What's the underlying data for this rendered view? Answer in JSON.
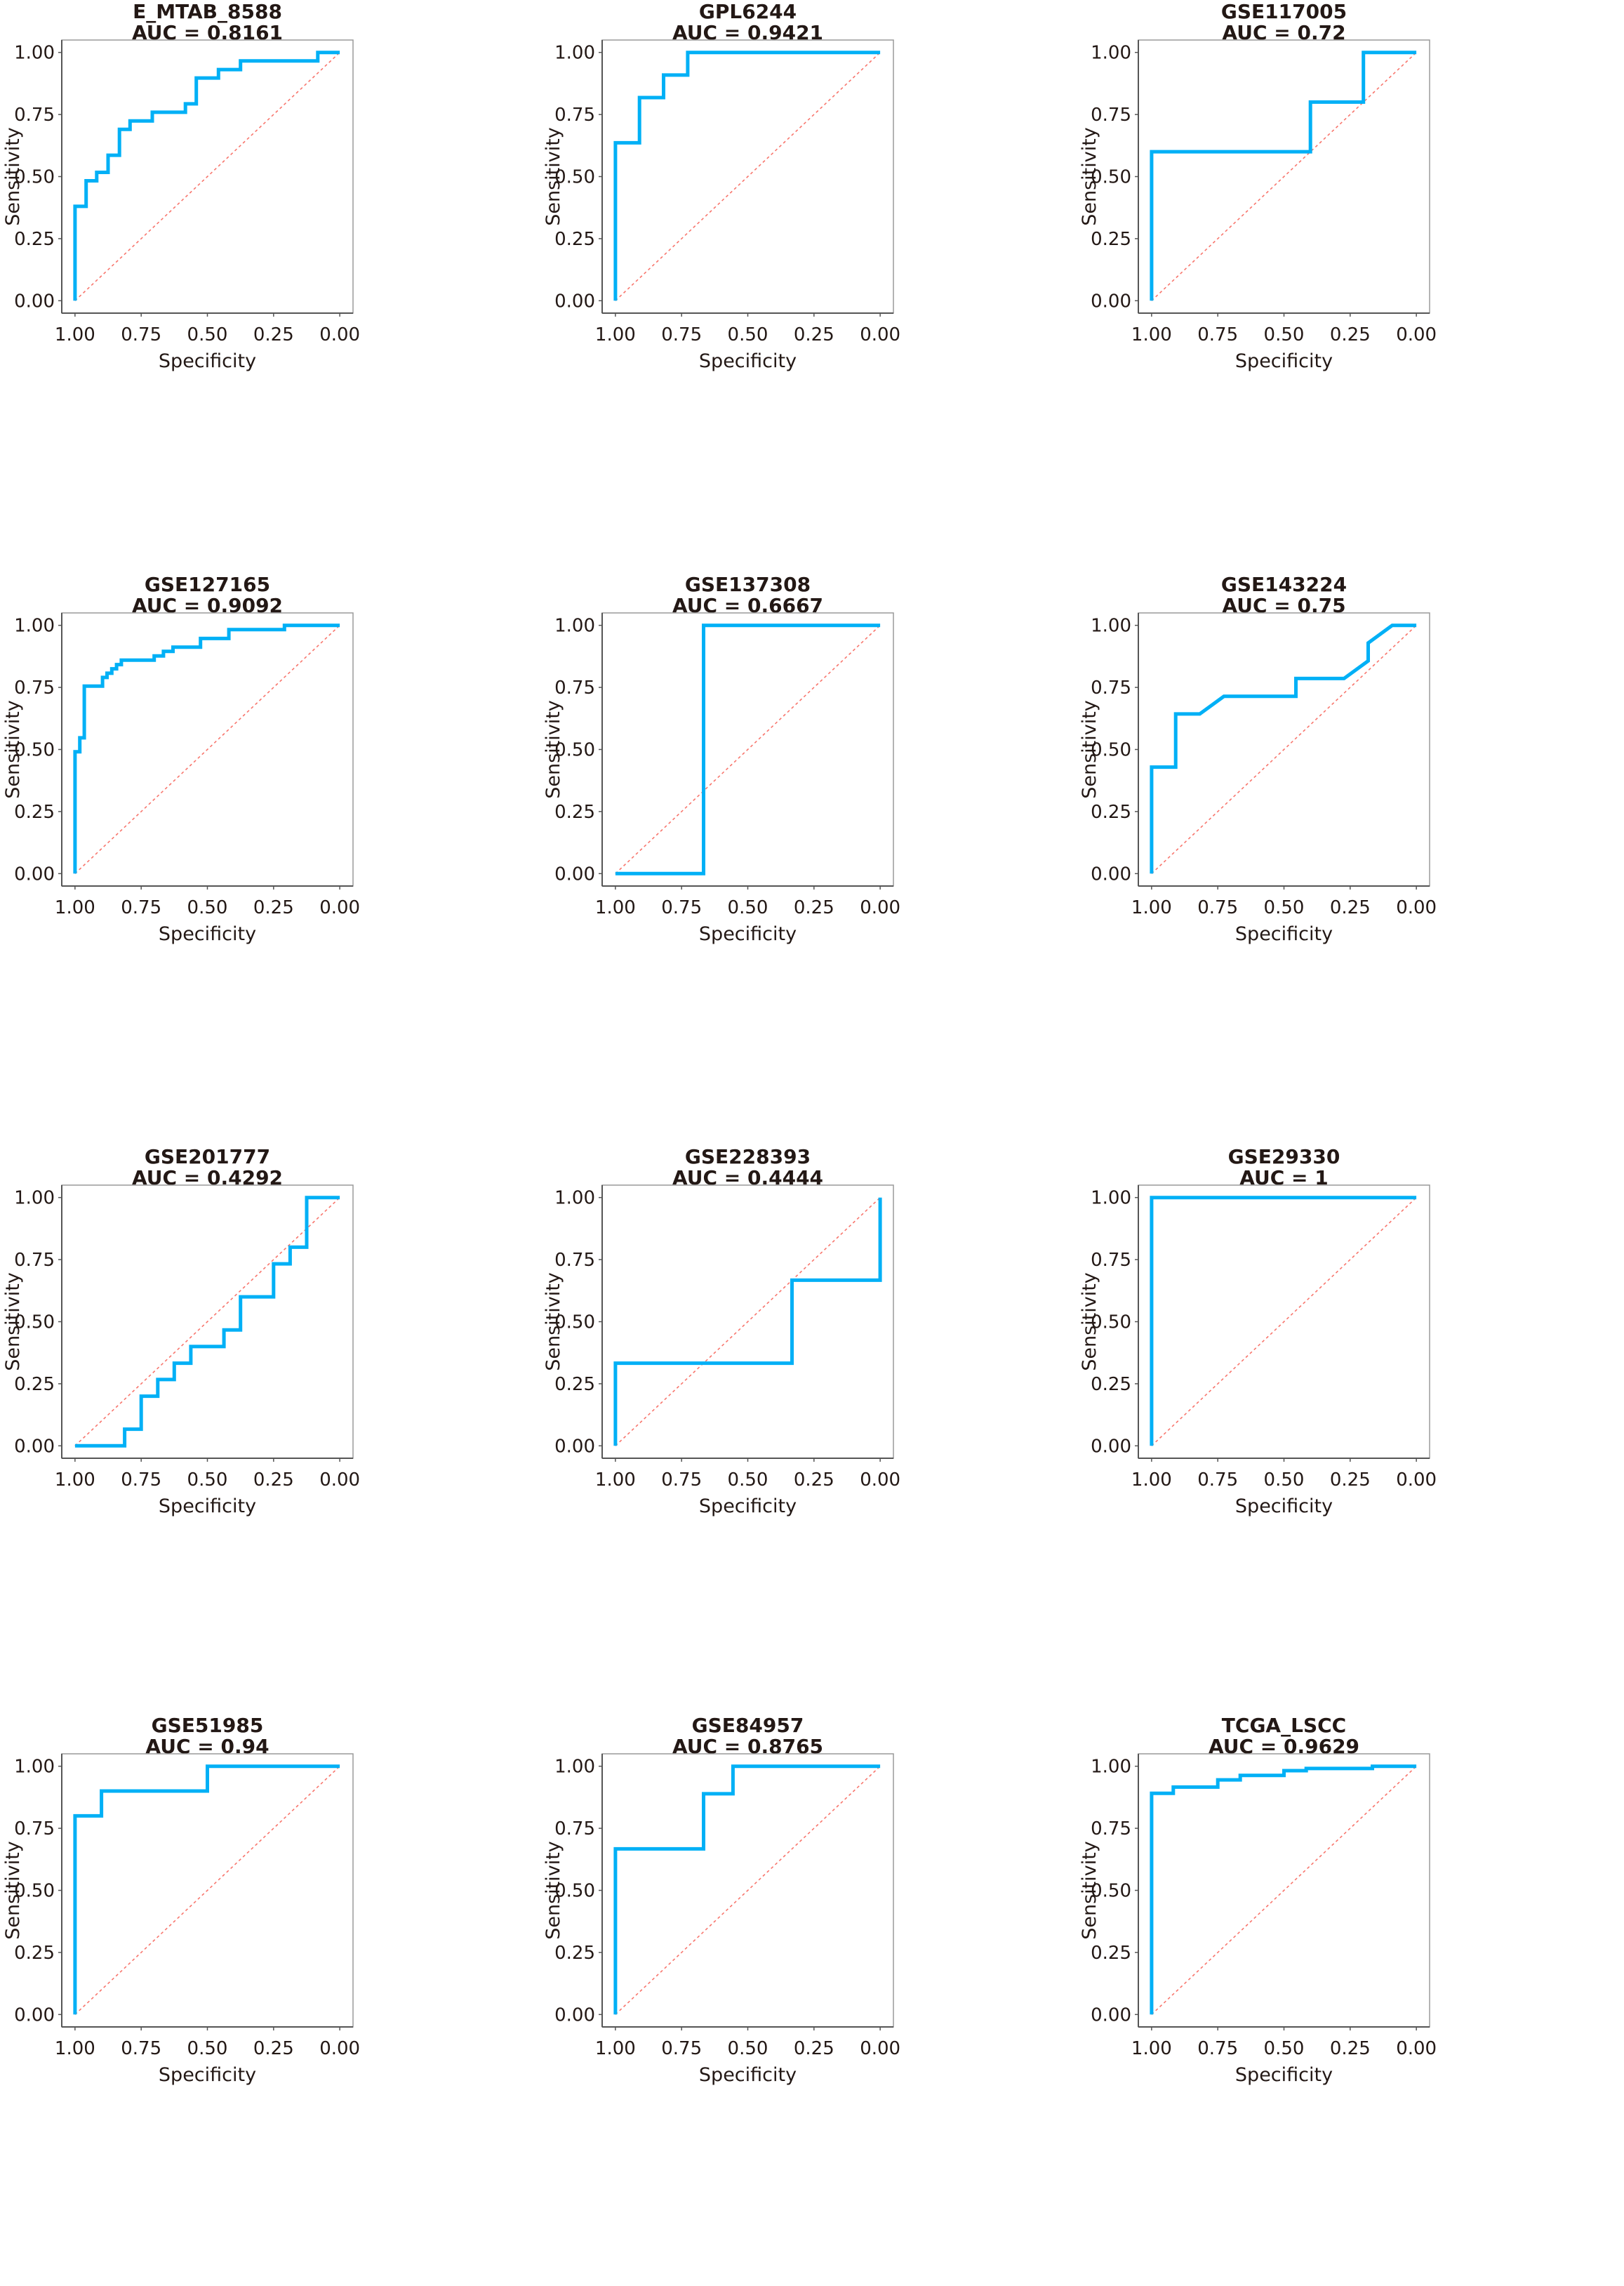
{
  "chart_data": [
    {
      "type": "line",
      "title": "E_MTAB_8588",
      "auc_label": "AUC = 0.8161",
      "xlabel": "Specificity",
      "ylabel": "Sensitivity",
      "xlim": [
        1,
        0
      ],
      "ylim": [
        0,
        1
      ],
      "x_reversed": true,
      "grid": false,
      "points": [
        [
          1,
          0
        ],
        [
          1,
          0.38
        ],
        [
          0.958,
          0.38
        ],
        [
          0.958,
          0.483
        ],
        [
          0.918,
          0.483
        ],
        [
          0.918,
          0.517
        ],
        [
          0.875,
          0.517
        ],
        [
          0.875,
          0.586
        ],
        [
          0.832,
          0.586
        ],
        [
          0.832,
          0.69
        ],
        [
          0.792,
          0.69
        ],
        [
          0.792,
          0.724
        ],
        [
          0.708,
          0.724
        ],
        [
          0.708,
          0.759
        ],
        [
          0.583,
          0.759
        ],
        [
          0.583,
          0.793
        ],
        [
          0.542,
          0.793
        ],
        [
          0.542,
          0.897
        ],
        [
          0.458,
          0.897
        ],
        [
          0.458,
          0.931
        ],
        [
          0.375,
          0.931
        ],
        [
          0.375,
          0.966
        ],
        [
          0.083,
          0.966
        ],
        [
          0.083,
          1
        ],
        [
          0,
          1
        ]
      ]
    },
    {
      "type": "line",
      "title": "GPL6244",
      "auc_label": "AUC = 0.9421",
      "xlabel": "Specificity",
      "ylabel": "Sensitivity",
      "xlim": [
        1,
        0
      ],
      "ylim": [
        0,
        1
      ],
      "x_reversed": true,
      "grid": false,
      "points": [
        [
          1,
          0
        ],
        [
          1,
          0.636
        ],
        [
          0.909,
          0.636
        ],
        [
          0.909,
          0.818
        ],
        [
          0.818,
          0.818
        ],
        [
          0.818,
          0.909
        ],
        [
          0.727,
          0.909
        ],
        [
          0.727,
          1
        ],
        [
          0,
          1
        ]
      ]
    },
    {
      "type": "line",
      "title": "GSE117005",
      "auc_label": "AUC = 0.72",
      "xlabel": "Specificity",
      "ylabel": "Sensitivity",
      "xlim": [
        1,
        0
      ],
      "ylim": [
        0,
        1
      ],
      "x_reversed": true,
      "grid": false,
      "points": [
        [
          1,
          0
        ],
        [
          1,
          0.6
        ],
        [
          0.4,
          0.6
        ],
        [
          0.4,
          0.8
        ],
        [
          0.2,
          0.8
        ],
        [
          0.2,
          1
        ],
        [
          0,
          1
        ]
      ]
    },
    {
      "type": "line",
      "title": "GSE127165",
      "auc_label": "AUC = 0.9092",
      "xlabel": "Specificity",
      "ylabel": "Sensitivity",
      "xlim": [
        1,
        0
      ],
      "ylim": [
        0,
        1
      ],
      "x_reversed": true,
      "grid": false,
      "points": [
        [
          1,
          0
        ],
        [
          1,
          0.491
        ],
        [
          0.982,
          0.491
        ],
        [
          0.982,
          0.547
        ],
        [
          0.965,
          0.547
        ],
        [
          0.965,
          0.755
        ],
        [
          0.896,
          0.755
        ],
        [
          0.896,
          0.79
        ],
        [
          0.879,
          0.79
        ],
        [
          0.879,
          0.807
        ],
        [
          0.861,
          0.807
        ],
        [
          0.861,
          0.825
        ],
        [
          0.843,
          0.825
        ],
        [
          0.843,
          0.842
        ],
        [
          0.825,
          0.842
        ],
        [
          0.825,
          0.86
        ],
        [
          0.701,
          0.86
        ],
        [
          0.701,
          0.877
        ],
        [
          0.666,
          0.877
        ],
        [
          0.666,
          0.895
        ],
        [
          0.63,
          0.895
        ],
        [
          0.63,
          0.912
        ],
        [
          0.526,
          0.912
        ],
        [
          0.526,
          0.947
        ],
        [
          0.419,
          0.947
        ],
        [
          0.419,
          0.983
        ],
        [
          0.209,
          0.983
        ],
        [
          0.209,
          1
        ],
        [
          0,
          1
        ]
      ]
    },
    {
      "type": "line",
      "title": "GSE137308",
      "auc_label": "AUC = 0.6667",
      "xlabel": "Specificity",
      "ylabel": "Sensitivity",
      "xlim": [
        1,
        0
      ],
      "ylim": [
        0,
        1
      ],
      "x_reversed": true,
      "grid": false,
      "points": [
        [
          1,
          0
        ],
        [
          0.667,
          0
        ],
        [
          0.667,
          1
        ],
        [
          0,
          1
        ]
      ]
    },
    {
      "type": "line",
      "title": "GSE143224",
      "auc_label": "AUC = 0.75",
      "xlabel": "Specificity",
      "ylabel": "Sensitivity",
      "xlim": [
        1,
        0
      ],
      "ylim": [
        0,
        1
      ],
      "x_reversed": true,
      "grid": false,
      "points": [
        [
          1,
          0
        ],
        [
          1,
          0.429
        ],
        [
          0.909,
          0.429
        ],
        [
          0.909,
          0.643
        ],
        [
          0.818,
          0.643
        ],
        [
          0.727,
          0.714
        ],
        [
          0.455,
          0.714
        ],
        [
          0.455,
          0.786
        ],
        [
          0.273,
          0.786
        ],
        [
          0.182,
          0.857
        ],
        [
          0.182,
          0.929
        ],
        [
          0.091,
          1
        ],
        [
          0,
          1
        ]
      ]
    },
    {
      "type": "line",
      "title": "GSE201777",
      "auc_label": "AUC = 0.4292",
      "xlabel": "Specificity",
      "ylabel": "Sensitivity",
      "xlim": [
        1,
        0
      ],
      "ylim": [
        0,
        1
      ],
      "x_reversed": true,
      "grid": false,
      "points": [
        [
          1,
          0
        ],
        [
          0.8125,
          0
        ],
        [
          0.8125,
          0.067
        ],
        [
          0.75,
          0.067
        ],
        [
          0.75,
          0.2
        ],
        [
          0.6875,
          0.2
        ],
        [
          0.6875,
          0.267
        ],
        [
          0.625,
          0.267
        ],
        [
          0.625,
          0.333
        ],
        [
          0.5625,
          0.333
        ],
        [
          0.5625,
          0.4
        ],
        [
          0.4375,
          0.4
        ],
        [
          0.4375,
          0.467
        ],
        [
          0.375,
          0.467
        ],
        [
          0.375,
          0.6
        ],
        [
          0.25,
          0.6
        ],
        [
          0.25,
          0.733
        ],
        [
          0.1875,
          0.733
        ],
        [
          0.1875,
          0.8
        ],
        [
          0.125,
          0.8
        ],
        [
          0.125,
          1
        ],
        [
          0,
          1
        ]
      ]
    },
    {
      "type": "line",
      "title": "GSE228393",
      "auc_label": "AUC = 0.4444",
      "xlabel": "Specificity",
      "ylabel": "Sensitivity",
      "xlim": [
        1,
        0
      ],
      "ylim": [
        0,
        1
      ],
      "x_reversed": true,
      "grid": false,
      "points": [
        [
          1,
          0
        ],
        [
          1,
          0.333
        ],
        [
          0.333,
          0.333
        ],
        [
          0.333,
          0.667
        ],
        [
          0,
          0.667
        ],
        [
          0,
          1
        ]
      ]
    },
    {
      "type": "line",
      "title": "GSE29330",
      "auc_label": "AUC = 1",
      "xlabel": "Specificity",
      "ylabel": "Sensitivity",
      "xlim": [
        1,
        0
      ],
      "ylim": [
        0,
        1
      ],
      "x_reversed": true,
      "grid": false,
      "points": [
        [
          1,
          0
        ],
        [
          1,
          1
        ],
        [
          0,
          1
        ]
      ]
    },
    {
      "type": "line",
      "title": "GSE51985",
      "auc_label": "AUC = 0.94",
      "xlabel": "Specificity",
      "ylabel": "Sensitivity",
      "xlim": [
        1,
        0
      ],
      "ylim": [
        0,
        1
      ],
      "x_reversed": true,
      "grid": false,
      "points": [
        [
          1,
          0
        ],
        [
          1,
          0.8
        ],
        [
          0.9,
          0.8
        ],
        [
          0.9,
          0.9
        ],
        [
          0.5,
          0.9
        ],
        [
          0.5,
          1
        ],
        [
          0,
          1
        ]
      ]
    },
    {
      "type": "line",
      "title": "GSE84957",
      "auc_label": "AUC = 0.8765",
      "xlabel": "Specificity",
      "ylabel": "Sensitivity",
      "xlim": [
        1,
        0
      ],
      "ylim": [
        0,
        1
      ],
      "x_reversed": true,
      "grid": false,
      "points": [
        [
          1,
          0
        ],
        [
          1,
          0.667
        ],
        [
          0.667,
          0.667
        ],
        [
          0.667,
          0.889
        ],
        [
          0.556,
          0.889
        ],
        [
          0.556,
          1
        ],
        [
          0,
          1
        ]
      ]
    },
    {
      "type": "line",
      "title": "TCGA_LSCC",
      "auc_label": "AUC = 0.9629",
      "xlabel": "Specificity",
      "ylabel": "Sensitivity",
      "xlim": [
        1,
        0
      ],
      "ylim": [
        0,
        1
      ],
      "x_reversed": true,
      "grid": false,
      "points": [
        [
          1,
          0
        ],
        [
          1,
          0.891
        ],
        [
          0.918,
          0.891
        ],
        [
          0.918,
          0.916
        ],
        [
          0.75,
          0.916
        ],
        [
          0.75,
          0.945
        ],
        [
          0.665,
          0.945
        ],
        [
          0.665,
          0.963
        ],
        [
          0.5,
          0.963
        ],
        [
          0.5,
          0.982
        ],
        [
          0.416,
          0.982
        ],
        [
          0.416,
          0.991
        ],
        [
          0.166,
          0.991
        ],
        [
          0.166,
          1
        ],
        [
          0,
          1
        ]
      ]
    }
  ],
  "axes": {
    "x_ticks": [
      "1.00",
      "0.75",
      "0.50",
      "0.25",
      "0.00"
    ],
    "x_tick_values": [
      1,
      0.75,
      0.5,
      0.25,
      0
    ],
    "y_ticks": [
      "0.00",
      "0.25",
      "0.50",
      "0.75",
      "1.00"
    ],
    "y_tick_values": [
      0,
      0.25,
      0.5,
      0.75,
      1
    ]
  },
  "colors": {
    "roc_curve": "#00B0F6",
    "reference_line": "#F8766D",
    "text": "#231815",
    "panel_border": "#9a9a9a",
    "axis_line": "#555555"
  }
}
